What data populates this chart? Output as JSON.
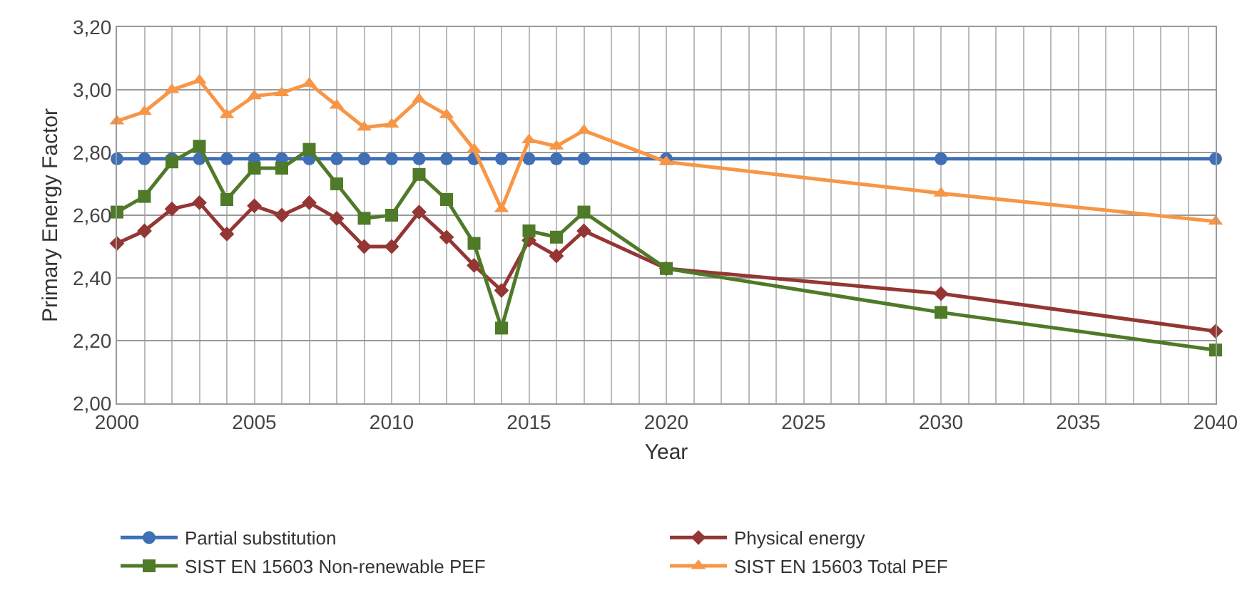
{
  "chart_data": {
    "type": "line",
    "xlabel": "Year",
    "ylabel": "Primary Energy Factor",
    "x": [
      2000,
      2001,
      2002,
      2003,
      2004,
      2005,
      2006,
      2007,
      2008,
      2009,
      2010,
      2011,
      2012,
      2013,
      2014,
      2015,
      2016,
      2017,
      2020,
      2030,
      2040
    ],
    "xlim": [
      2000,
      2040
    ],
    "xticks": [
      2000,
      {
        "value": 2001,
        "label": null
      },
      {
        "value": 2002,
        "label": null
      },
      {
        "value": 2003,
        "label": null
      },
      {
        "value": 2004,
        "label": null
      },
      2005,
      {
        "value": 2006,
        "label": null
      },
      {
        "value": 2007,
        "label": null
      },
      {
        "value": 2008,
        "label": null
      },
      {
        "value": 2009,
        "label": null
      },
      2010,
      {
        "value": 2011,
        "label": null
      },
      {
        "value": 2012,
        "label": null
      },
      {
        "value": 2013,
        "label": null
      },
      {
        "value": 2014,
        "label": null
      },
      2015,
      {
        "value": 2016,
        "label": null
      },
      {
        "value": 2017,
        "label": null
      },
      {
        "value": 2018,
        "label": null
      },
      {
        "value": 2019,
        "label": null
      },
      2020,
      {
        "value": 2021,
        "label": null
      },
      {
        "value": 2022,
        "label": null
      },
      {
        "value": 2023,
        "label": null
      },
      {
        "value": 2024,
        "label": null
      },
      2025,
      {
        "value": 2026,
        "label": null
      },
      {
        "value": 2027,
        "label": null
      },
      {
        "value": 2028,
        "label": null
      },
      {
        "value": 2029,
        "label": null
      },
      2030,
      {
        "value": 2031,
        "label": null
      },
      {
        "value": 2032,
        "label": null
      },
      {
        "value": 2033,
        "label": null
      },
      {
        "value": 2034,
        "label": null
      },
      2035,
      {
        "value": 2036,
        "label": null
      },
      {
        "value": 2037,
        "label": null
      },
      {
        "value": 2038,
        "label": null
      },
      {
        "value": 2039,
        "label": null
      },
      2040
    ],
    "ylim": [
      2.0,
      3.2
    ],
    "yticks": [
      {
        "value": 2.0,
        "label": "2,00"
      },
      {
        "value": 2.2,
        "label": "2,20"
      },
      {
        "value": 2.4,
        "label": "2,40"
      },
      {
        "value": 2.6,
        "label": "2,60"
      },
      {
        "value": 2.8,
        "label": "2,80"
      },
      {
        "value": 3.0,
        "label": "3,00"
      },
      {
        "value": 3.2,
        "label": "3,20"
      }
    ],
    "grid": true,
    "legend": "bottom",
    "line_style": "solid",
    "series": [
      {
        "name": "Partial substitution",
        "color": "#3f6fb5",
        "marker": "circle",
        "values": [
          2.78,
          2.78,
          2.78,
          2.78,
          2.78,
          2.78,
          2.78,
          2.78,
          2.78,
          2.78,
          2.78,
          2.78,
          2.78,
          2.78,
          2.78,
          2.78,
          2.78,
          2.78,
          2.78,
          2.78,
          2.78
        ]
      },
      {
        "name": "Physical energy",
        "color": "#943634",
        "marker": "diamond",
        "values": [
          2.51,
          2.55,
          2.62,
          2.64,
          2.54,
          2.63,
          2.6,
          2.64,
          2.59,
          2.5,
          2.5,
          2.61,
          2.53,
          2.44,
          2.36,
          2.52,
          2.47,
          2.55,
          2.43,
          2.35,
          2.23
        ]
      },
      {
        "name": "SIST EN 15603 Non-renewable PEF",
        "color": "#4f7a28",
        "marker": "square",
        "values": [
          2.61,
          2.66,
          2.77,
          2.82,
          2.65,
          2.75,
          2.75,
          2.81,
          2.7,
          2.59,
          2.6,
          2.73,
          2.65,
          2.51,
          2.24,
          2.55,
          2.53,
          2.61,
          2.43,
          2.29,
          2.17
        ]
      },
      {
        "name": "SIST EN 15603 Total PEF",
        "color": "#f79646",
        "marker": "triangle",
        "values": [
          2.9,
          2.93,
          3.0,
          3.03,
          2.92,
          2.98,
          2.99,
          3.02,
          2.95,
          2.88,
          2.89,
          2.97,
          2.92,
          2.81,
          2.62,
          2.84,
          2.82,
          2.87,
          2.77,
          2.67,
          2.58
        ]
      }
    ]
  }
}
